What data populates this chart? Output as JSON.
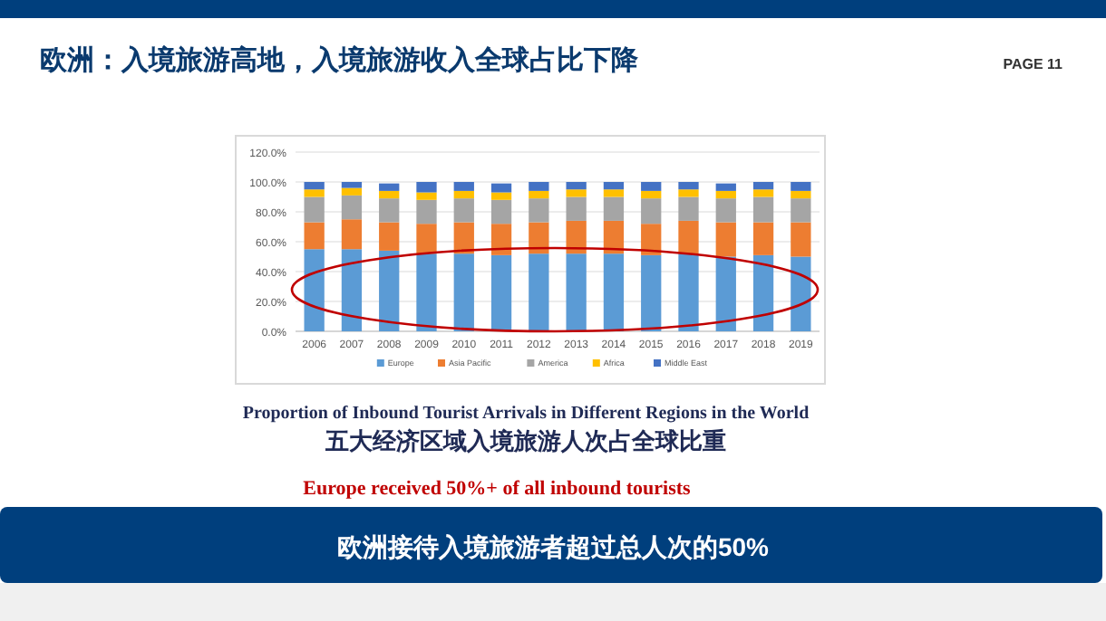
{
  "chart_data": {
    "type": "bar",
    "stacked": true,
    "title": "欧洲：入境旅游高地，入境旅游收入全球占比下降",
    "subtitle": "Proportion of Inbound Tourist Arrivals in Different Regions in the World",
    "annotations": [
      "PAGE 11",
      "五大经济区域入境旅游人次占全球比重",
      "Europe received 50%+ of all inbound tourists",
      "欧洲接待入境旅游者超过总人次的50%"
    ],
    "categories": [
      "2006",
      "2007",
      "2008",
      "2009",
      "2010",
      "2011",
      "2012",
      "2013",
      "2014",
      "2015",
      "2016",
      "2017",
      "2018",
      "2019"
    ],
    "series": [
      {
        "name": "Europe",
        "color": "#5b9bd5",
        "values": [
          55,
          55,
          54,
          52,
          52,
          51,
          52,
          52,
          52,
          51,
          52,
          50,
          51,
          50
        ]
      },
      {
        "name": "Asia Pacific",
        "color": "#ed7d31",
        "values": [
          18,
          20,
          19,
          20,
          21,
          21,
          21,
          22,
          22,
          21,
          22,
          23,
          22,
          23
        ]
      },
      {
        "name": "America",
        "color": "#a5a5a5",
        "values": [
          17,
          16,
          16,
          16,
          16,
          16,
          16,
          16,
          16,
          17,
          16,
          16,
          17,
          16
        ]
      },
      {
        "name": "Africa",
        "color": "#ffc000",
        "values": [
          5,
          5,
          5,
          5,
          5,
          5,
          5,
          5,
          5,
          5,
          5,
          5,
          5,
          5
        ]
      },
      {
        "name": "Middle East",
        "color": "#4472c4",
        "values": [
          5,
          4,
          5,
          7,
          6,
          6,
          6,
          5,
          5,
          6,
          5,
          5,
          5,
          6
        ]
      }
    ],
    "ylim": [
      0,
      120
    ],
    "yticks": [
      {
        "value": 0,
        "label": "0.0%"
      },
      {
        "value": 20,
        "label": "20.0%"
      },
      {
        "value": 40,
        "label": "40.0%"
      },
      {
        "value": 60,
        "label": "60.0%"
      },
      {
        "value": 80,
        "label": "80.0%"
      },
      {
        "value": 100,
        "label": "100.0%"
      },
      {
        "value": 120,
        "label": "120.0%"
      }
    ],
    "grid": "y",
    "legend": "bottom"
  }
}
